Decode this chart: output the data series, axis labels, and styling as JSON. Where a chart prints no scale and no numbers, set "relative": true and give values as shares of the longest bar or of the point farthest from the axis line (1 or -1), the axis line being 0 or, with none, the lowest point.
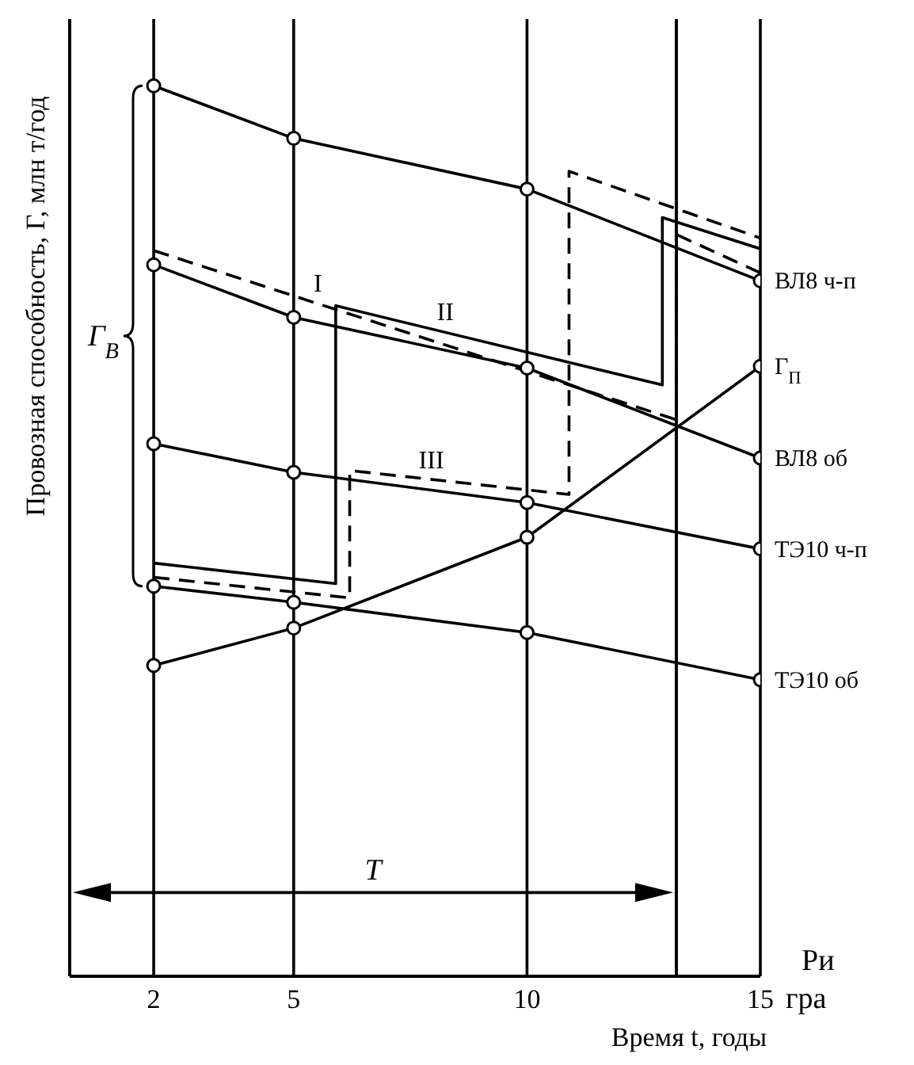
{
  "chart_data": {
    "type": "line",
    "relative": true,
    "xlabel": "Время t, годы",
    "ylabel": "Провозная способность, Г, млн т/год",
    "x": [
      2,
      5,
      10,
      15
    ],
    "xlim": [
      0.2,
      15
    ],
    "xticks": [
      2,
      5,
      10,
      15
    ],
    "grid": "x",
    "marker": "circle",
    "series": [
      {
        "name": "ВЛ8 ч-п",
        "color": "#000000",
        "values": [
          1,
          0.941,
          0.884,
          0.781
        ]
      },
      {
        "name": "ВЛ8 об",
        "color": "#000000",
        "values": [
          0.799,
          0.74,
          0.683,
          0.582
        ]
      },
      {
        "name": "Г$_{П}$",
        "color": "#000000",
        "values": [
          0.349,
          0.391,
          0.493,
          0.685
        ]
      },
      {
        "name": "ТЭ10 ч-п",
        "color": "#000000",
        "values": [
          0.598,
          0.566,
          0.532,
          0.48
        ]
      },
      {
        "name": "ТЭ10 об",
        "color": "#000000",
        "values": [
          0.438,
          0.42,
          0.386,
          0.333
        ]
      },
      {
        "name": "I",
        "color": "#000000",
        "marker": "none",
        "line_style": "dashed",
        "x": [
          2,
          13.2,
          13.2,
          15
        ],
        "values": [
          0.815,
          0.625,
          0.833,
          0.79
        ]
      },
      {
        "name": "II",
        "color": "#000000",
        "marker": "none",
        "line_style": "solid",
        "x": [
          2,
          5.9,
          5.9,
          12.9,
          12.9,
          15
        ],
        "values": [
          0.464,
          0.441,
          0.753,
          0.664,
          0.852,
          0.817
        ]
      },
      {
        "name": "III",
        "color": "#000000",
        "marker": "none",
        "line_style": "dashed",
        "x": [
          2,
          6.2,
          6.2,
          10.9,
          10.9,
          15
        ],
        "values": [
          0.448,
          0.425,
          0.568,
          0.541,
          0.904,
          0.829
        ]
      }
    ],
    "ref_lines": [
      {
        "axis": "x",
        "value": 13.2,
        "color": "#000000"
      }
    ],
    "annotations": [
      "Г$_{В}$",
      "T",
      "Ри",
      "гра"
    ]
  }
}
